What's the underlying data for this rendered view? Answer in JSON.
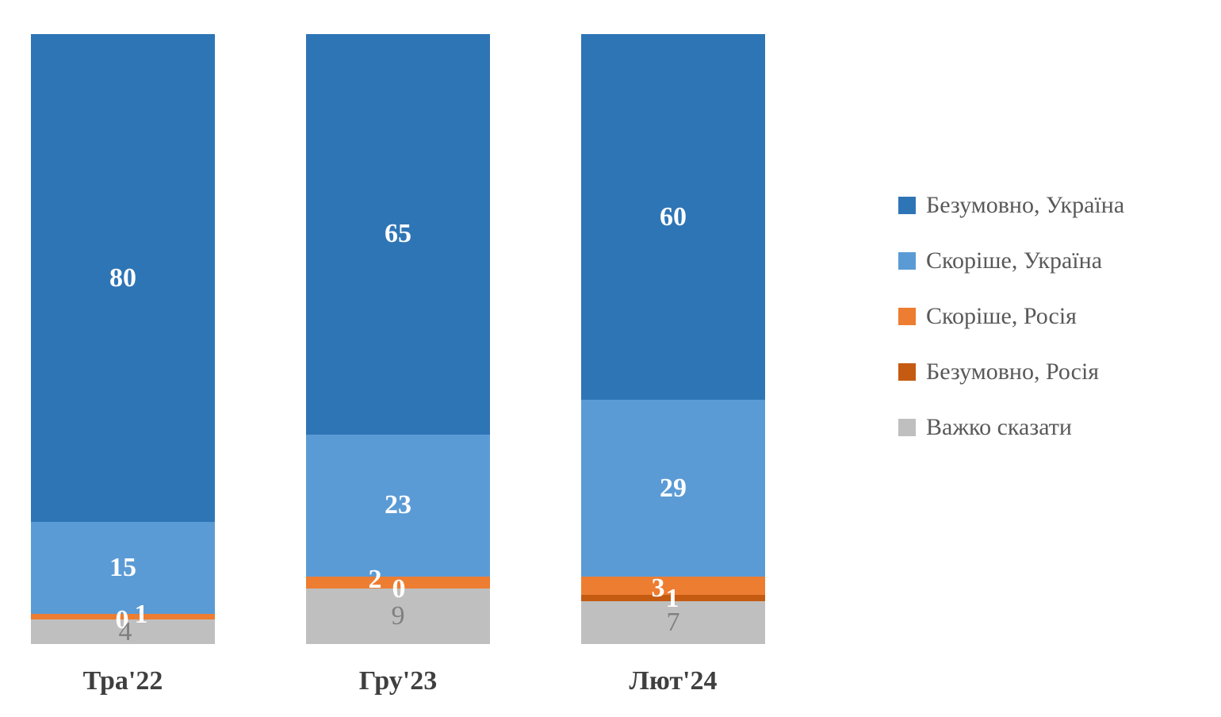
{
  "chart_data": {
    "type": "bar",
    "subtype": "stacked-column",
    "title": "",
    "xlabel": "",
    "ylabel": "",
    "categories": [
      "Тра'22",
      "Гру'23",
      "Лют'24"
    ],
    "series": [
      {
        "name": "Безумовно, Україна",
        "color": "#2E75B6",
        "values": [
          80,
          65,
          60
        ]
      },
      {
        "name": "Скоріше, Україна",
        "color": "#5B9BD5",
        "values": [
          15,
          23,
          29
        ]
      },
      {
        "name": "Скоріше, Росія",
        "color": "#ED7D31",
        "values": [
          1,
          2,
          3
        ]
      },
      {
        "name": "Безумовно, Росія",
        "color": "#C55A11",
        "values": [
          0,
          0,
          1
        ]
      },
      {
        "name": "Важко сказати",
        "color": "#BFBFBF",
        "values": [
          4,
          9,
          7
        ]
      }
    ],
    "data_labels": true,
    "label_color_on_segment": "#FFFFFF",
    "label_color_on_gray_segment": "#808080",
    "axis_label_color": "#3F3F3F",
    "legend_text_color": "#595959",
    "legend_position": "right",
    "gridlines": false,
    "axes_visible": false,
    "background": "#FFFFFF",
    "ylim": [
      0,
      100
    ]
  }
}
